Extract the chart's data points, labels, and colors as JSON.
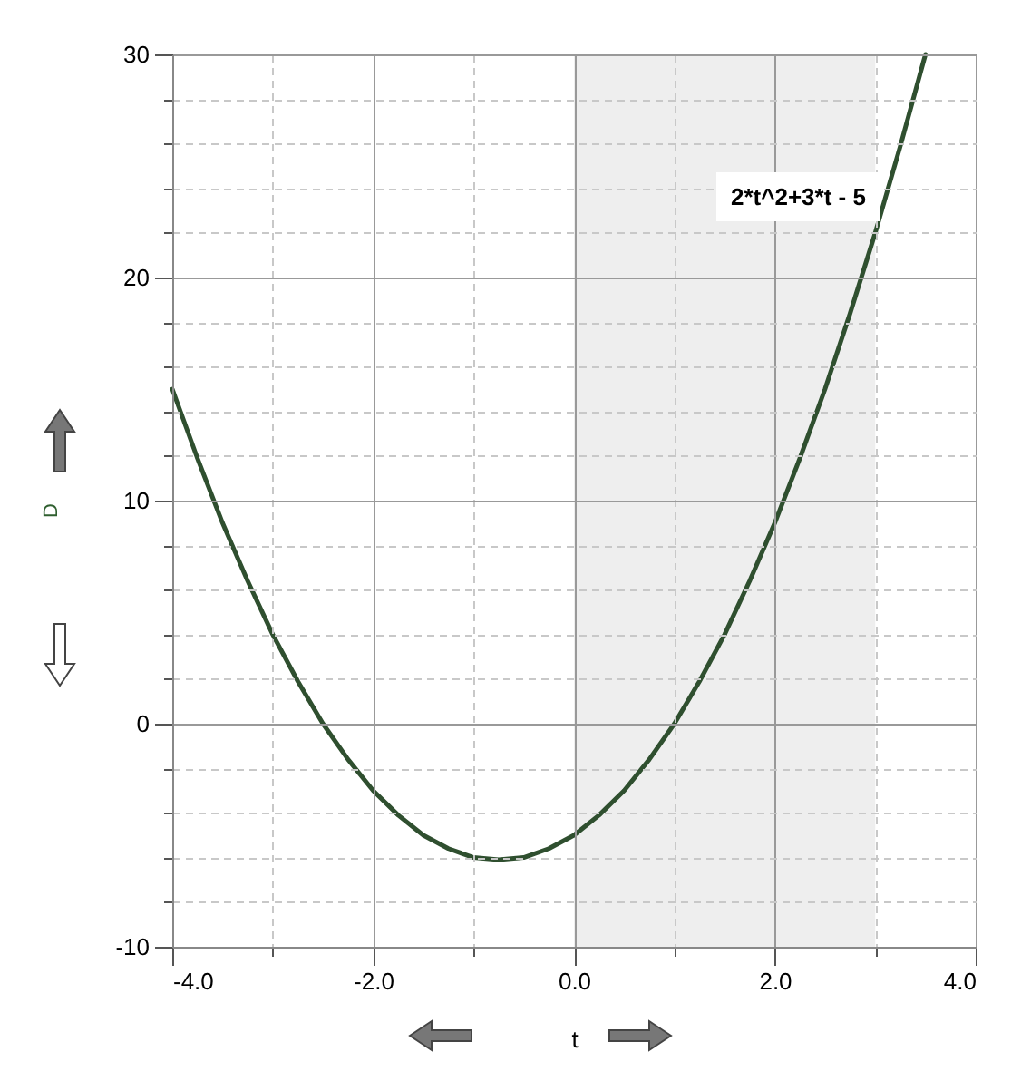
{
  "chart_data": {
    "type": "line",
    "xlabel": "t",
    "ylabel": "D",
    "x": [
      -4,
      -3.75,
      -3.5,
      -3.25,
      -3,
      -2.75,
      -2.5,
      -2.25,
      -2,
      -1.75,
      -1.5,
      -1.25,
      -1,
      -0.75,
      -0.5,
      -0.25,
      0,
      0.25,
      0.5,
      0.75,
      1,
      1.25,
      1.5,
      1.75,
      2,
      2.25,
      2.5,
      2.75,
      3,
      3.25,
      3.5
    ],
    "series": [
      {
        "color": "#2f4f2f",
        "values": [
          15,
          11.9,
          9,
          6.4,
          4,
          1.9,
          0,
          -1.6,
          -3,
          -4.1,
          -5,
          -5.6,
          -6,
          -6.1,
          -6,
          -5.6,
          -5,
          -4.1,
          -3,
          -1.6,
          0,
          1.9,
          4,
          6.4,
          9,
          11.9,
          15,
          18.4,
          22,
          25.9,
          30
        ]
      }
    ],
    "xlim": [
      -4,
      4
    ],
    "ylim": [
      -10,
      30
    ],
    "xticks": [
      {
        "value": -4,
        "label": "-4.0"
      },
      {
        "value": -3,
        "label": null
      },
      {
        "value": -2,
        "label": "-2.0"
      },
      {
        "value": -1,
        "label": null
      },
      {
        "value": 0,
        "label": "0.0"
      },
      {
        "value": 1,
        "label": null
      },
      {
        "value": 2,
        "label": "2.0"
      },
      {
        "value": 3,
        "label": null
      },
      {
        "value": 4,
        "label": "4.0"
      }
    ],
    "yticks": [
      -10,
      {
        "value": -8,
        "label": null
      },
      {
        "value": -6,
        "label": null
      },
      {
        "value": -4,
        "label": null
      },
      {
        "value": -2,
        "label": null
      },
      0,
      {
        "value": 2,
        "label": null
      },
      {
        "value": 4,
        "label": null
      },
      {
        "value": 6,
        "label": null
      },
      {
        "value": 8,
        "label": null
      },
      10,
      {
        "value": 12,
        "label": null
      },
      {
        "value": 14,
        "label": null
      },
      {
        "value": 16,
        "label": null
      },
      {
        "value": 18,
        "label": null
      },
      20,
      {
        "value": 22,
        "label": null
      },
      {
        "value": 24,
        "label": null
      },
      {
        "value": 26,
        "label": null
      },
      {
        "value": 28,
        "label": null
      },
      30
    ],
    "bands": [
      {
        "axis": "x",
        "from": 0,
        "to": 3,
        "color": "#eeeeee"
      }
    ],
    "annotations": [
      "2*t^2+3*t - 5"
    ],
    "grid": true,
    "marker": "none",
    "line_style": "solid"
  }
}
